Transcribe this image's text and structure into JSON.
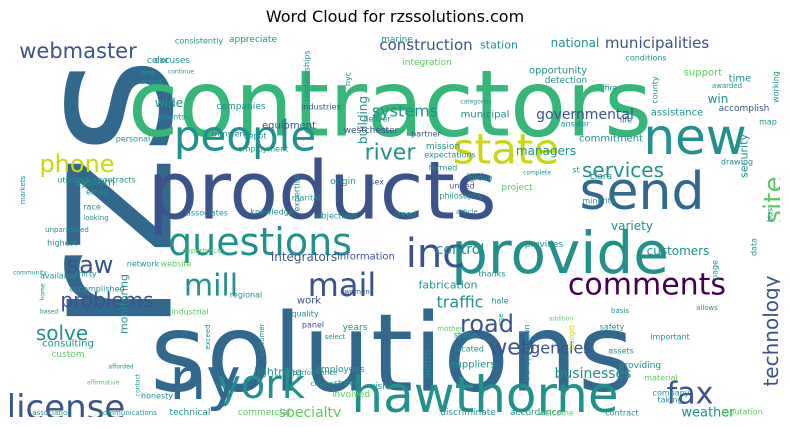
{
  "title": "Word Cloud for rzssolutions.com",
  "palette": {
    "purple": "#440154",
    "indigo": "#3b528b",
    "blue": "#31688e",
    "teal": "#21918c",
    "green": "#35b779",
    "lime": "#5ec962",
    "yellow": "#bddf26",
    "gold": "#c8d80b",
    "light": "#9ad85a"
  },
  "words": [
    {
      "text": "rzs"
    },
    {
      "text": "solutions"
    },
    {
      "text": "contractors"
    },
    {
      "text": "products"
    },
    {
      "text": "provide"
    },
    {
      "text": "hawthorne"
    },
    {
      "text": "york"
    },
    {
      "text": "ny"
    },
    {
      "text": "new"
    },
    {
      "text": "send"
    },
    {
      "text": "people"
    },
    {
      "text": "state"
    },
    {
      "text": "questions"
    },
    {
      "text": "inc"
    },
    {
      "text": "comments"
    },
    {
      "text": "mail"
    },
    {
      "text": "mill"
    },
    {
      "text": "license"
    },
    {
      "text": "fax"
    },
    {
      "text": "webmaster"
    },
    {
      "text": "phone"
    },
    {
      "text": "saw"
    },
    {
      "text": "problems"
    },
    {
      "text": "solve"
    },
    {
      "text": "road"
    },
    {
      "text": "web"
    },
    {
      "text": "technology"
    },
    {
      "text": "site"
    },
    {
      "text": "services"
    },
    {
      "text": "river"
    },
    {
      "text": "construction"
    },
    {
      "text": "municipalities"
    },
    {
      "text": "national"
    },
    {
      "text": "station"
    },
    {
      "text": "conditions"
    },
    {
      "text": "governmental"
    },
    {
      "text": "systems"
    },
    {
      "text": "managers"
    },
    {
      "text": "traffic"
    },
    {
      "text": "fabrication"
    },
    {
      "text": "agencies"
    },
    {
      "text": "businesses"
    },
    {
      "text": "weather"
    },
    {
      "text": "specialty"
    },
    {
      "text": "lightning"
    },
    {
      "text": "integrators"
    },
    {
      "text": "information"
    },
    {
      "text": "customers"
    },
    {
      "text": "variety"
    },
    {
      "text": "control"
    },
    {
      "text": "system"
    },
    {
      "text": "building"
    },
    {
      "text": "security"
    },
    {
      "text": "consulting"
    },
    {
      "text": "custom"
    },
    {
      "text": "monitoring"
    },
    {
      "text": "wide"
    },
    {
      "text": "win"
    },
    {
      "text": "support"
    },
    {
      "text": "time"
    },
    {
      "text": "assistance"
    },
    {
      "text": "accomplish"
    },
    {
      "text": "commitment"
    },
    {
      "text": "opportunity"
    },
    {
      "text": "detection"
    },
    {
      "text": "marine"
    },
    {
      "text": "excuses"
    },
    {
      "text": "integration"
    },
    {
      "text": "westchester"
    },
    {
      "text": "equipment"
    },
    {
      "text": "companies"
    },
    {
      "text": "industries"
    },
    {
      "text": "deliver"
    },
    {
      "text": "partner"
    },
    {
      "text": "mission"
    },
    {
      "text": "expectations"
    },
    {
      "text": "formed"
    },
    {
      "text": "group"
    },
    {
      "text": "united"
    },
    {
      "text": "philosophy"
    },
    {
      "text": "project"
    },
    {
      "text": "clara"
    },
    {
      "text": "minority"
    },
    {
      "text": "provides"
    },
    {
      "text": "thanks"
    },
    {
      "text": "hale"
    },
    {
      "text": "status"
    },
    {
      "text": "located"
    },
    {
      "text": "transportation"
    },
    {
      "text": "suppliers"
    },
    {
      "text": "alarm"
    },
    {
      "text": "years"
    },
    {
      "text": "panel"
    },
    {
      "text": "quality"
    },
    {
      "text": "work"
    },
    {
      "text": "regional"
    },
    {
      "text": "industrial"
    },
    {
      "text": "employees"
    },
    {
      "text": "visit"
    },
    {
      "text": "involved"
    },
    {
      "text": "states"
    },
    {
      "text": "discriminate"
    },
    {
      "text": "accordance"
    },
    {
      "text": "welcome"
    },
    {
      "text": "contract"
    },
    {
      "text": "technical"
    },
    {
      "text": "commercial"
    },
    {
      "text": "honesty"
    },
    {
      "text": "communications"
    },
    {
      "text": "association"
    },
    {
      "text": "reputation"
    },
    {
      "text": "taking"
    },
    {
      "text": "company"
    },
    {
      "text": "providing"
    },
    {
      "text": "material"
    },
    {
      "text": "assets"
    },
    {
      "text": "important"
    },
    {
      "text": "safety"
    },
    {
      "text": "basis"
    },
    {
      "text": "budget"
    },
    {
      "text": "mother"
    },
    {
      "text": "addition"
    },
    {
      "text": "allows"
    },
    {
      "text": "page"
    },
    {
      "text": "data"
    },
    {
      "text": "bus"
    },
    {
      "text": "map"
    },
    {
      "text": "drawing"
    },
    {
      "text": "life"
    },
    {
      "text": "answer"
    },
    {
      "text": "fire"
    },
    {
      "text": "county"
    },
    {
      "text": "working"
    },
    {
      "text": "awarded"
    },
    {
      "text": "consistently"
    },
    {
      "text": "appreciate"
    },
    {
      "text": "relationships"
    },
    {
      "text": "nyc"
    },
    {
      "text": "color"
    },
    {
      "text": "line"
    },
    {
      "text": "action"
    },
    {
      "text": "events"
    },
    {
      "text": "personal"
    },
    {
      "text": "transfer"
    },
    {
      "text": "depot"
    },
    {
      "text": "employment"
    },
    {
      "text": "expertise"
    },
    {
      "text": "origin"
    },
    {
      "text": "sex"
    },
    {
      "text": "marital"
    },
    {
      "text": "associates"
    },
    {
      "text": "knowledge"
    },
    {
      "text": "objectives"
    },
    {
      "text": "creed"
    },
    {
      "text": "article"
    },
    {
      "text": "email"
    },
    {
      "text": "race"
    },
    {
      "text": "utilizing"
    },
    {
      "text": "contracts"
    },
    {
      "text": "looking"
    },
    {
      "text": "unparalleled"
    },
    {
      "text": "highest"
    },
    {
      "text": "thirty"
    },
    {
      "text": "available"
    },
    {
      "text": "accomplished"
    },
    {
      "text": "network"
    },
    {
      "text": "website"
    },
    {
      "text": "experience"
    },
    {
      "text": "markets"
    },
    {
      "text": "customer"
    },
    {
      "text": "performance"
    },
    {
      "text": "citizen"
    },
    {
      "text": "select"
    },
    {
      "text": "exceed"
    },
    {
      "text": "women"
    },
    {
      "text": "municipal"
    },
    {
      "text": "categories"
    },
    {
      "text": "continue"
    },
    {
      "text": "count"
    },
    {
      "text": "complete"
    },
    {
      "text": "st"
    },
    {
      "text": "age"
    },
    {
      "text": "community"
    },
    {
      "text": "home"
    },
    {
      "text": "based"
    },
    {
      "text": "afforded"
    },
    {
      "text": "affirmative"
    },
    {
      "text": "contact"
    }
  ]
}
